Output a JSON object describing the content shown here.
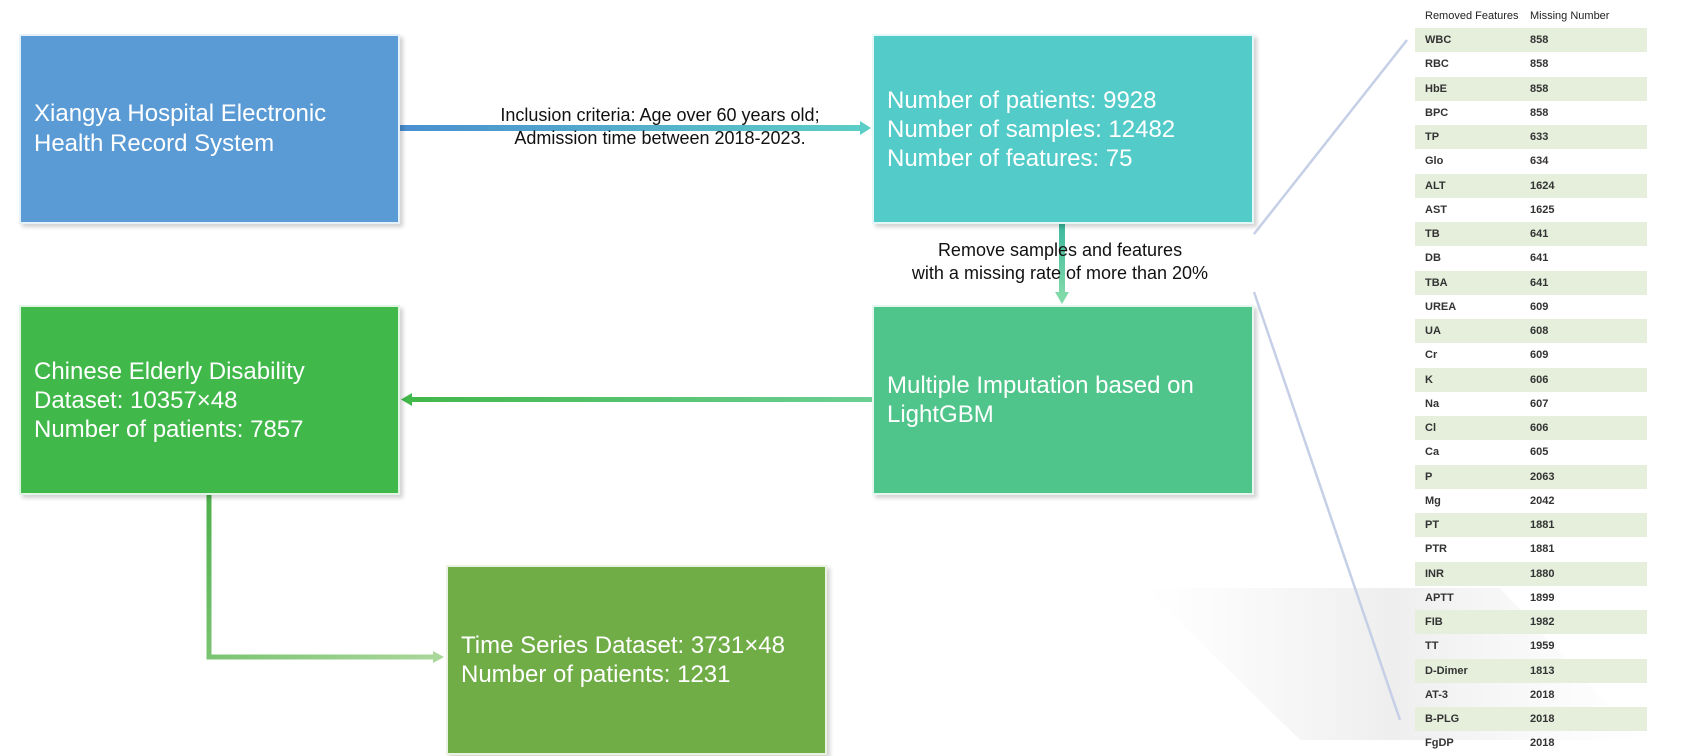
{
  "colors": {
    "source_box": "#5b9bd5",
    "counts_box": "#52cbc9",
    "imputation_box": "#4fc58b",
    "cedd_box": "#41b84a",
    "ts_box": "#70ad47",
    "table_stripe": "#e5efdc",
    "zoom_lines": "#c5cfe6"
  },
  "nodes": {
    "source": {
      "lines": [
        "Xiangya Hospital Electronic",
        "Health Record System"
      ]
    },
    "counts": {
      "lines": [
        "Number of patients: 9928",
        "Number of samples: 12482",
        "Number of features: 75"
      ]
    },
    "imputation": {
      "lines": [
        "Multiple Imputation based on",
        "LightGBM"
      ]
    },
    "cedd": {
      "lines": [
        "Chinese Elderly Disability",
        "Dataset: 10357×48",
        "Number of patients: 7857"
      ]
    },
    "timeseries": {
      "lines": [
        "Time Series Dataset: 3731×48",
        "Number of patients: 1231"
      ]
    }
  },
  "edges": {
    "inclusion": {
      "lines": [
        "Inclusion criteria: Age over 60 years old;",
        "Admission time between 2018-2023."
      ]
    },
    "remove": {
      "lines": [
        "Remove samples and features",
        "with a missing rate of more than 20%"
      ]
    }
  },
  "removed_table": {
    "headers": [
      "Removed Features",
      "Missing Number"
    ],
    "rows": [
      [
        "WBC",
        "858"
      ],
      [
        "RBC",
        "858"
      ],
      [
        "HbE",
        "858"
      ],
      [
        "BPC",
        "858"
      ],
      [
        "TP",
        "633"
      ],
      [
        "Glo",
        "634"
      ],
      [
        "ALT",
        "1624"
      ],
      [
        "AST",
        "1625"
      ],
      [
        "TB",
        "641"
      ],
      [
        "DB",
        "641"
      ],
      [
        "TBA",
        "641"
      ],
      [
        "UREA",
        "609"
      ],
      [
        "UA",
        "608"
      ],
      [
        "Cr",
        "609"
      ],
      [
        "K",
        "606"
      ],
      [
        "Na",
        "607"
      ],
      [
        "Cl",
        "606"
      ],
      [
        "Ca",
        "605"
      ],
      [
        "P",
        "2063"
      ],
      [
        "Mg",
        "2042"
      ],
      [
        "PT",
        "1881"
      ],
      [
        "PTR",
        "1881"
      ],
      [
        "INR",
        "1880"
      ],
      [
        "APTT",
        "1899"
      ],
      [
        "FIB",
        "1982"
      ],
      [
        "TT",
        "1959"
      ],
      [
        "D-Dimer",
        "1813"
      ],
      [
        "AT-3",
        "2018"
      ],
      [
        "B-PLG",
        "2018"
      ],
      [
        "FgDP",
        "2018"
      ]
    ]
  }
}
